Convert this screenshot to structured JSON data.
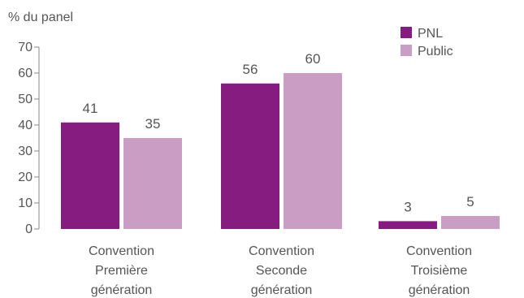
{
  "chart_data": {
    "type": "bar",
    "ylabel": "% du panel",
    "ylim": [
      0,
      70
    ],
    "yticks": [
      0,
      10,
      20,
      30,
      40,
      50,
      60,
      70
    ],
    "grid": false,
    "legend_position": "top-right",
    "categories": [
      [
        "Convention",
        "Première",
        "génération"
      ],
      [
        "Convention",
        "Seconde",
        "génération"
      ],
      [
        "Convention",
        "Troisième",
        "génération"
      ]
    ],
    "series": [
      {
        "name": "PNL",
        "color": "#861c7f",
        "values": [
          41,
          56,
          3
        ]
      },
      {
        "name": "Public",
        "color": "#c99dc4",
        "values": [
          35,
          60,
          5
        ]
      }
    ]
  }
}
